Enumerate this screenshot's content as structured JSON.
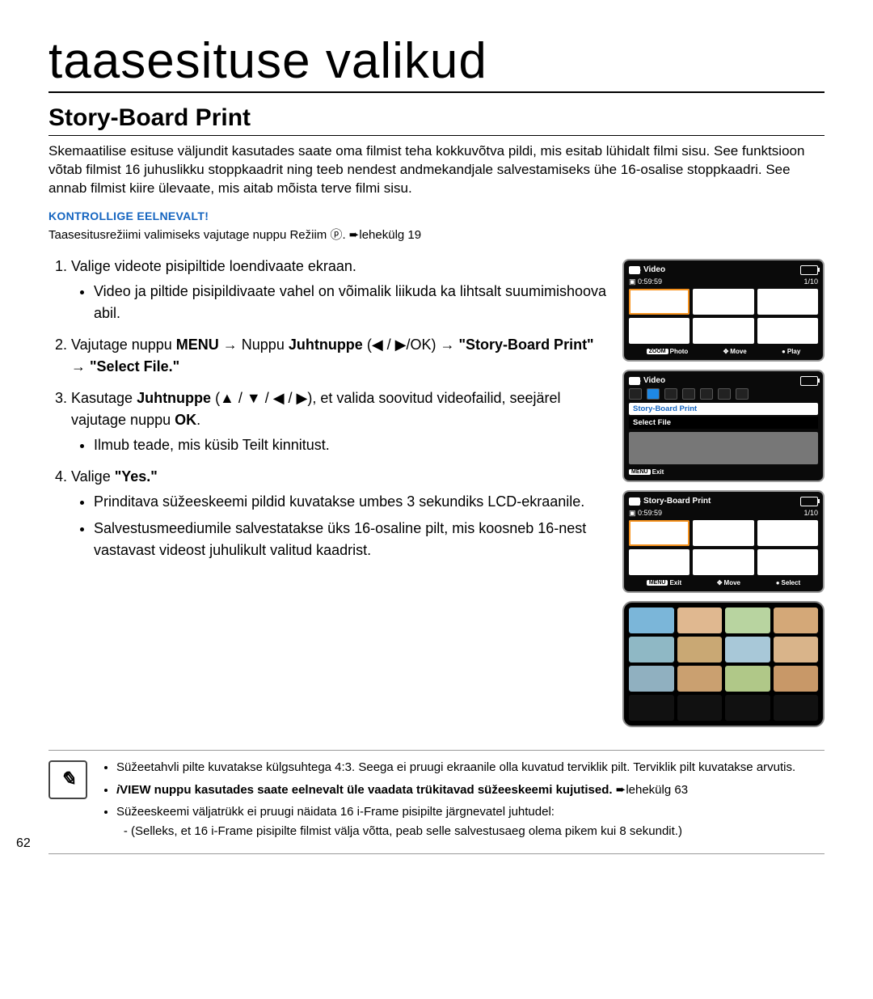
{
  "page_title": "taasesituse valikud",
  "section_title": "Story-Board Print",
  "intro": "Skemaatilise esituse väljundit kasutades saate oma filmist teha kokkuvõtva pildi, mis esitab lühidalt filmi sisu. See funktsioon võtab filmist 16 juhuslikku stoppkaadrit ning teeb nendest andmekandjale salvestamiseks ühe 16-osalise stoppkaadri. See annab filmist kiire ülevaate, mis aitab mõista terve filmi sisu.",
  "check_heading": "KONTROLLIGE EELNEVALT!",
  "check_text": "Taasesitusrežiimi valimiseks vajutage nuppu Režiim ⓟ. ➨lehekülg 19",
  "steps": {
    "s1": "Valige videote pisipiltide loendivaate ekraan.",
    "s1a": "Video ja piltide pisipildivaate vahel on võimalik liikuda ka lihtsalt suumimishoova abil.",
    "s2_pre": "Vajutage nuppu ",
    "s2_menu": "MENU",
    "s2_mid1": " → Nuppu ",
    "s2_juht": "Juhtnuppe",
    "s2_mid2": " (◀ / ▶/OK) → ",
    "s2_sbp": "\"Story-Board Print\"",
    "s2_mid3": " → ",
    "s2_sel": "\"Select File.\"",
    "s3_pre": "Kasutage ",
    "s3_juht": "Juhtnuppe",
    "s3_mid": " (▲ / ▼ / ◀ / ▶), et valida soovitud videofailid, seejärel vajutage nuppu ",
    "s3_ok": "OK",
    "s3_end": ".",
    "s3a": "Ilmub teade, mis küsib Teilt kinnitust.",
    "s4_pre": "Valige ",
    "s4_yes": "\"Yes.\"",
    "s4a": "Prinditava süžeeskeemi pildid kuvatakse umbes 3 sekundiks LCD-ekraanile.",
    "s4b": "Salvestusmeediumile salvestatakse üks 16-osaline pilt, mis koosneb 16-nest vastavast videost juhulikult valitud kaadrist."
  },
  "lcd": {
    "video": "Video",
    "time": "0:59:59",
    "counter": "1/10",
    "zoom": "ZOOM",
    "photo": "Photo",
    "move": "Move",
    "play": "Play",
    "select": "Select",
    "menu": "MENU",
    "exit": "Exit",
    "sbp": "Story-Board Print",
    "selectfile": "Select File"
  },
  "result_colors": [
    "#7bb6d9",
    "#e0b890",
    "#b8d4a0",
    "#d4a878",
    "#8fb8c5",
    "#c9a874",
    "#a8c8d8",
    "#d9b48a",
    "#90b0c0",
    "#caa070",
    "#b0c888",
    "#c89868"
  ],
  "notes": {
    "n1": "Süžeetahvli pilte kuvatakse külgsuhtega 4:3. Seega ei pruugi ekraanile olla kuvatud terviklik pilt. Terviklik pilt kuvatakse arvutis.",
    "n2_pre": "i",
    "n2_bold": "VIEW nuppu kasutades saate eelnevalt üle vaadata trükitavad süžeeskeemi kujutised.",
    "n2_ref": " ➨lehekülg 63",
    "n3": "Süžeeskeemi väljatrükk ei pruugi näidata 16 i-Frame pisipilte järgnevatel juhtudel:",
    "n3a": "(Selleks, et 16 i-Frame pisipilte filmist välja võtta, peab selle salvestusaeg olema pikem kui 8 sekundit.)"
  },
  "page_number": "62"
}
